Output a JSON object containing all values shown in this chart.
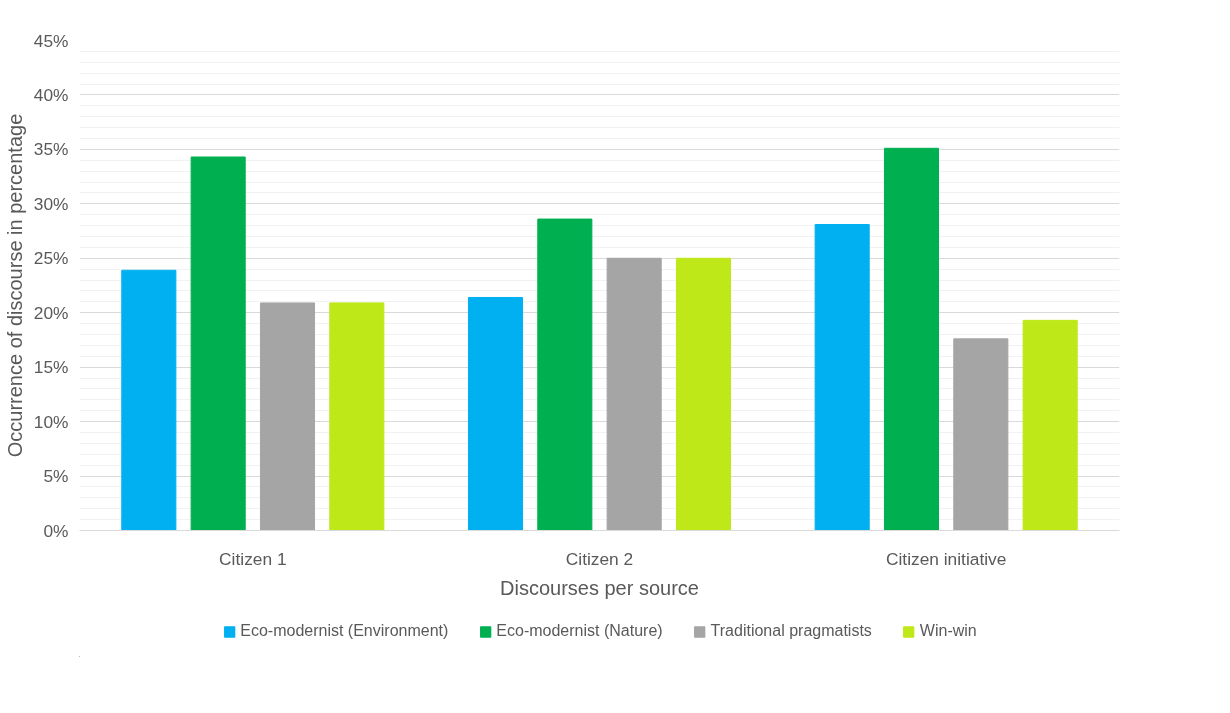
{
  "chart_data": {
    "type": "bar",
    "xlabel": "Discourses per source",
    "ylabel": "Occurrence of discourse in percentage",
    "categories": [
      "Citizen 1",
      "Citizen 2",
      "Citizen initiative"
    ],
    "series": [
      {
        "name": "Eco-modernist (Environment)",
        "color": "#00b0f0",
        "values": [
          23.9,
          21.4,
          28.1
        ]
      },
      {
        "name": "Eco-modernist (Nature)",
        "color": "#00b050",
        "values": [
          34.3,
          28.6,
          35.1
        ]
      },
      {
        "name": "Traditional pragmatists",
        "color": "#a5a5a5",
        "values": [
          20.9,
          25.0,
          17.6
        ]
      },
      {
        "name": "Win-win",
        "color": "#bee817",
        "values": [
          20.9,
          25.0,
          19.3
        ]
      }
    ],
    "ylim": [
      0,
      45
    ],
    "yticks": [
      {
        "value": 0,
        "label": "0%"
      },
      {
        "value": 5,
        "label": "5%"
      },
      {
        "value": 10,
        "label": "10%"
      },
      {
        "value": 15,
        "label": "15%"
      },
      {
        "value": 20,
        "label": "20%"
      },
      {
        "value": 25,
        "label": "25%"
      },
      {
        "value": 30,
        "label": "30%"
      },
      {
        "value": 35,
        "label": "35%"
      },
      {
        "value": 40,
        "label": "40%"
      },
      {
        "value": 45,
        "label": "45%"
      }
    ],
    "grid": "y",
    "legend": "bottom"
  }
}
